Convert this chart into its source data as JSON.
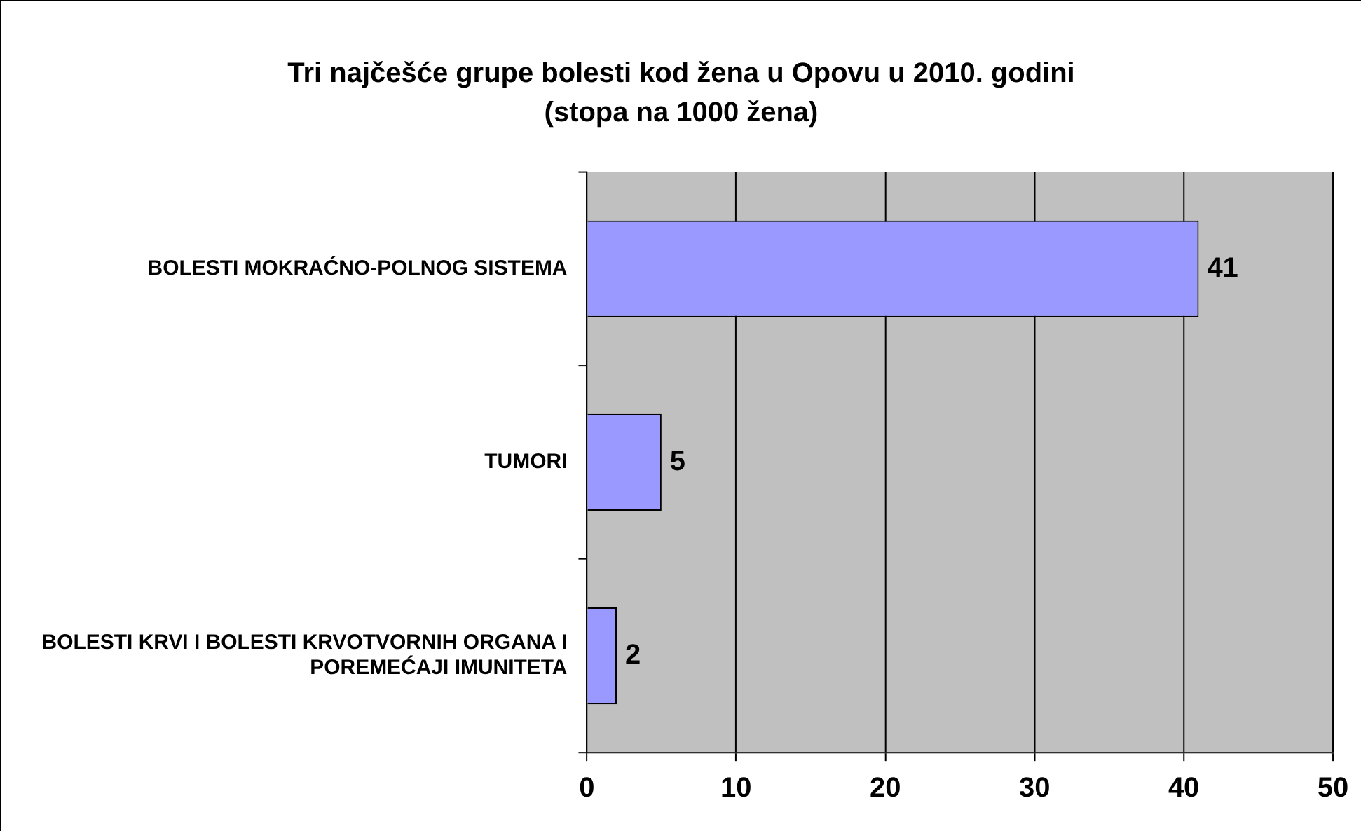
{
  "chart_data": {
    "type": "bar",
    "orientation": "horizontal",
    "title": "Tri najčešće grupe bolesti kod žena u Opovu u 2010. godini",
    "subtitle": "(stopa na 1000 žena)",
    "categories": [
      "BOLESTI MOKRAĆNO-POLNOG SISTEMA",
      "TUMORI",
      "BOLESTI KRVI I BOLESTI KRVOTVORNIH ORGANA I POREMEĆAJI IMUNITETA"
    ],
    "values": [
      41,
      5,
      2
    ],
    "color": "#9999ff",
    "xlim": [
      0,
      50
    ],
    "xticks": [
      0,
      10,
      20,
      30,
      40,
      50
    ],
    "grid": "x",
    "data_labels": true,
    "legend": false
  }
}
